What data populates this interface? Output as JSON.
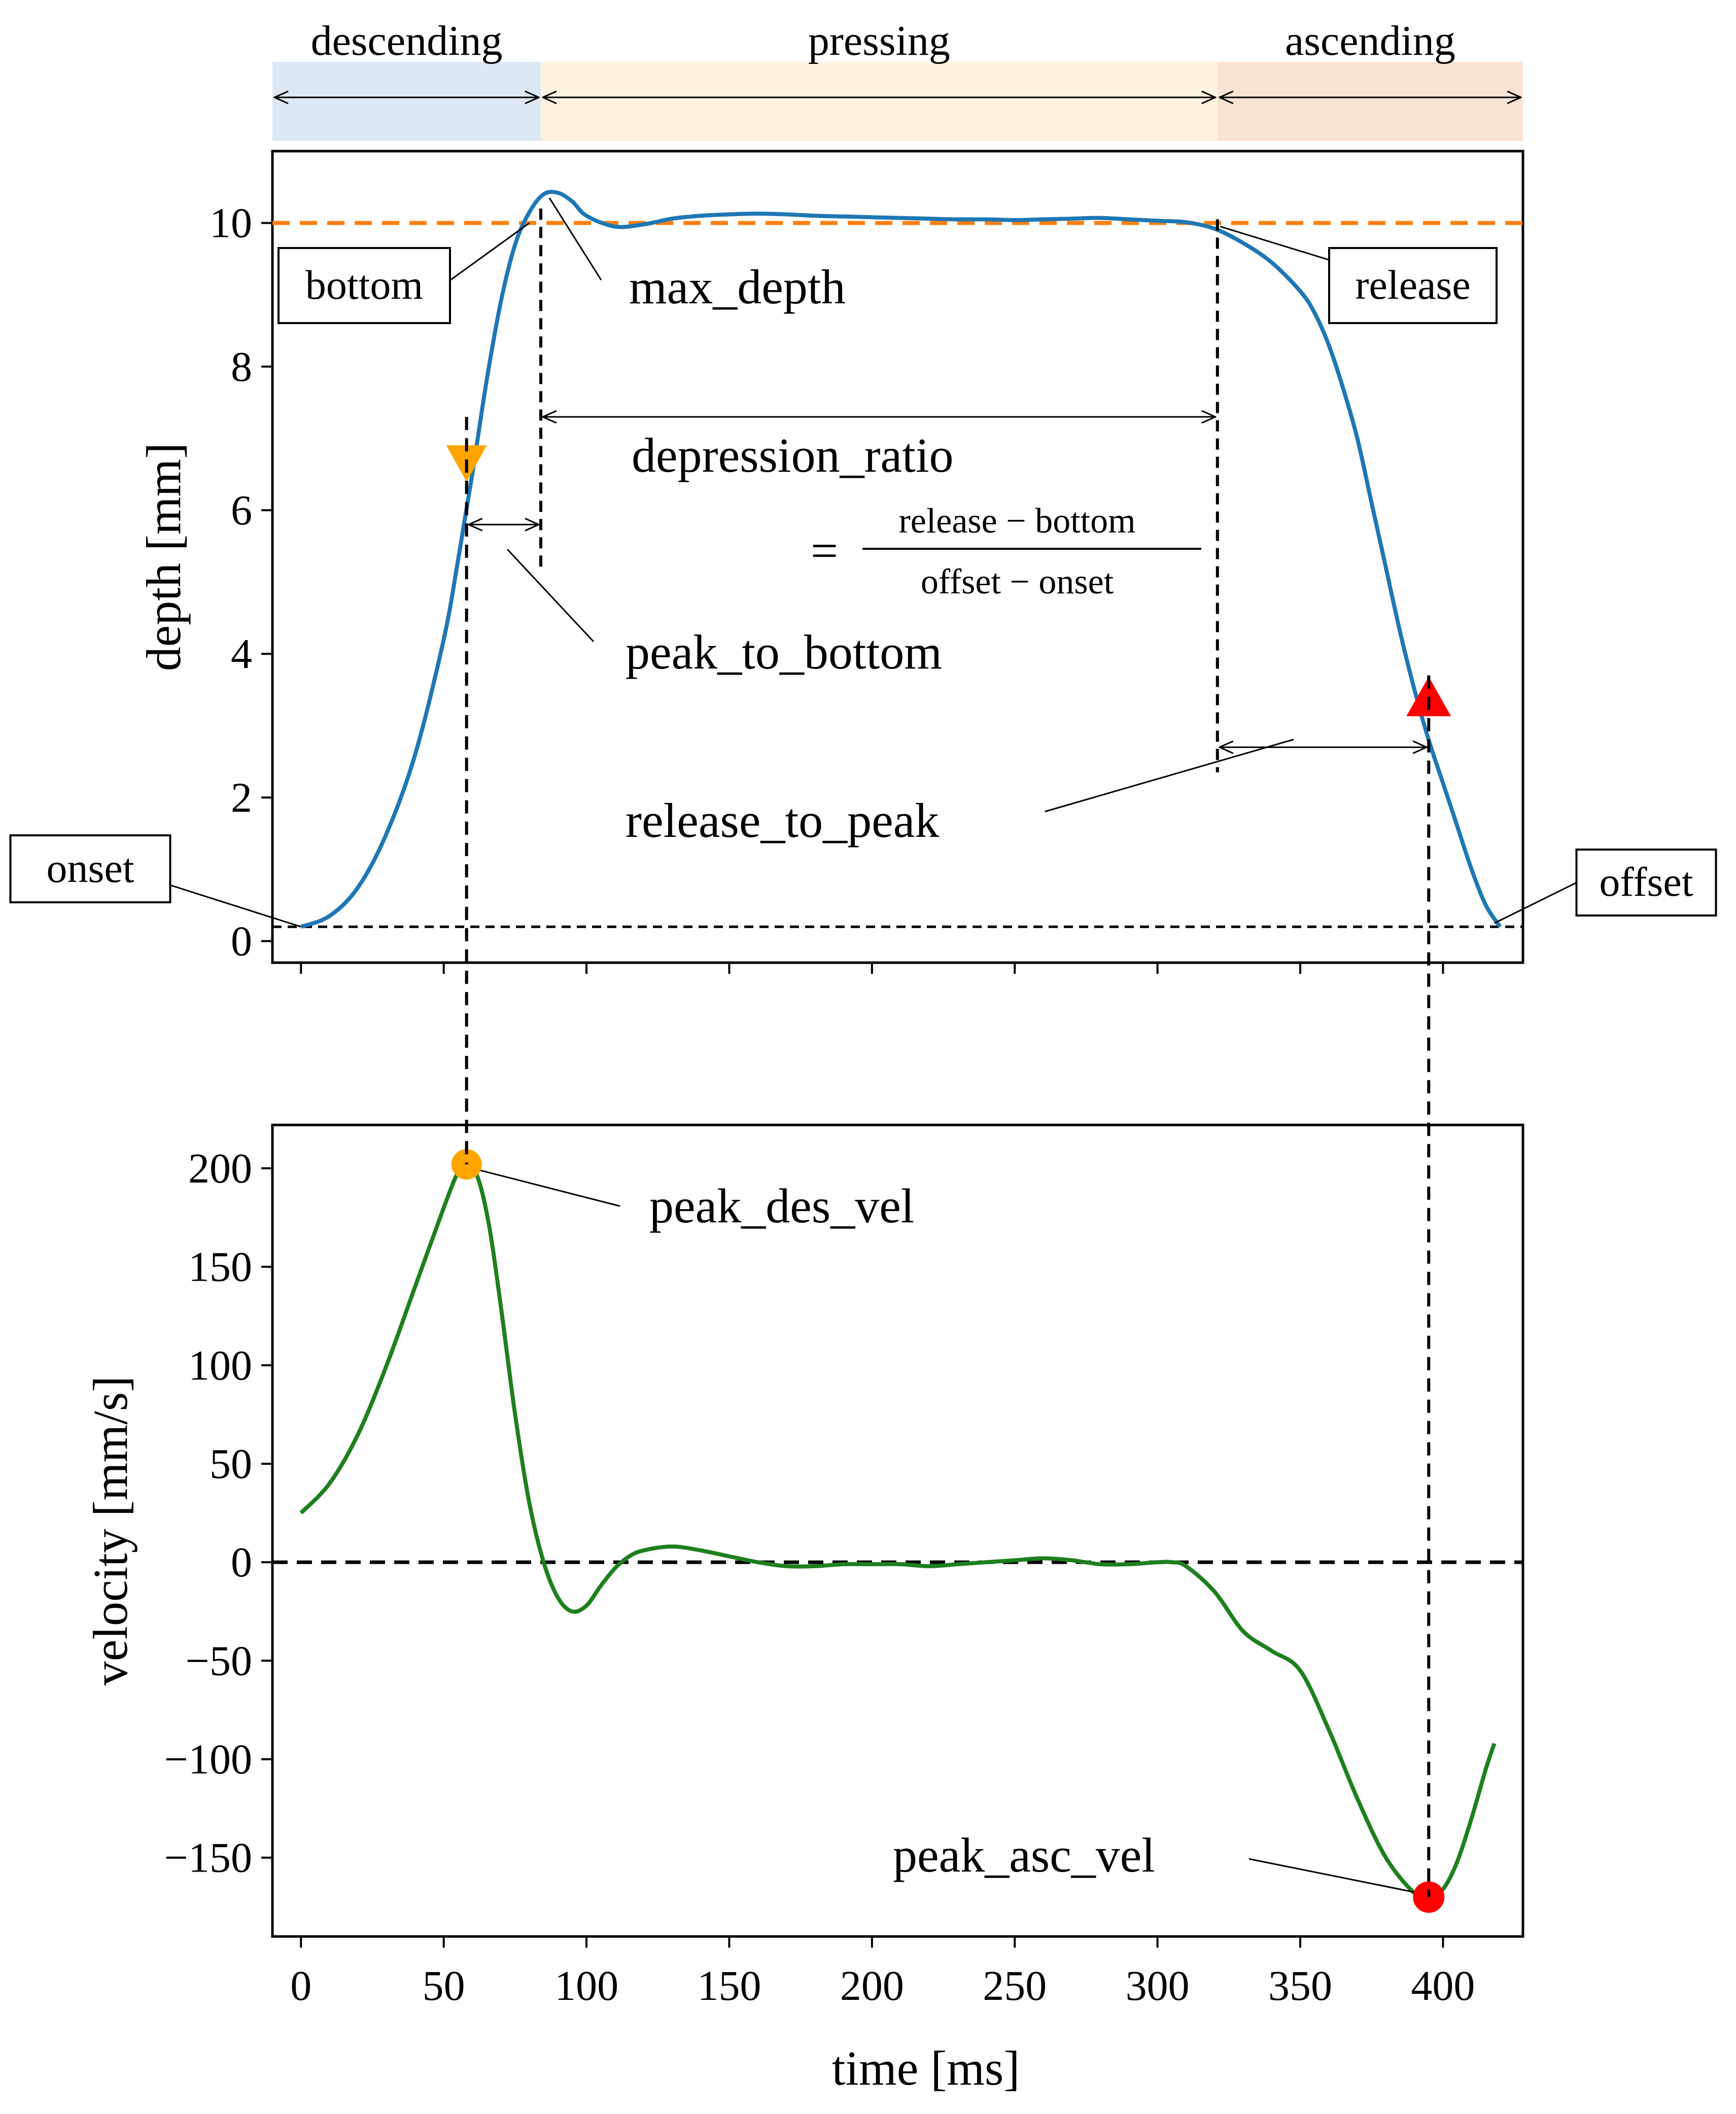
{
  "chart_data": [
    {
      "type": "line",
      "ylabel": "depth [mm]",
      "ylim": [
        -0.3,
        11.0
      ],
      "yticks": [
        0,
        2,
        4,
        6,
        8,
        10
      ],
      "x": [
        0,
        10,
        20,
        30,
        40,
        50,
        55,
        60,
        65,
        70,
        75,
        80,
        85,
        90,
        95,
        100,
        110,
        120,
        130,
        140,
        150,
        160,
        170,
        180,
        190,
        200,
        210,
        220,
        230,
        240,
        250,
        260,
        270,
        280,
        290,
        300,
        310,
        320,
        330,
        340,
        350,
        355,
        360,
        365,
        370,
        375,
        380,
        385,
        390,
        395,
        400,
        405,
        410,
        415,
        420
      ],
      "series": [
        {
          "name": "depth",
          "color": "#1f77b4",
          "values": [
            0.2,
            0.35,
            0.75,
            1.5,
            2.6,
            4.2,
            5.3,
            6.5,
            7.8,
            8.9,
            9.7,
            10.15,
            10.4,
            10.42,
            10.3,
            10.1,
            9.95,
            9.98,
            10.06,
            10.1,
            10.12,
            10.13,
            10.12,
            10.1,
            10.09,
            10.08,
            10.07,
            10.06,
            10.05,
            10.05,
            10.04,
            10.05,
            10.06,
            10.07,
            10.05,
            10.03,
            10.01,
            9.92,
            9.72,
            9.45,
            9.05,
            8.75,
            8.3,
            7.7,
            7.0,
            6.1,
            5.2,
            4.3,
            3.5,
            2.8,
            2.2,
            1.6,
            1.0,
            0.5,
            0.2
          ]
        }
      ],
      "reference_lines": [
        {
          "orientation": "horizontal",
          "y": 10.0,
          "style": "dashed",
          "color": "#ff7f0e"
        },
        {
          "orientation": "horizontal",
          "y": 0.2,
          "style": "dashed",
          "color": "#000000"
        }
      ],
      "markers": [
        {
          "label": "peak descending",
          "x": 58,
          "y": 6.65,
          "shape": "triangle-down",
          "color": "#ffa500"
        },
        {
          "label": "peak ascending",
          "x": 395,
          "y": 3.4,
          "shape": "triangle-up",
          "color": "#ff0000"
        }
      ],
      "phases": [
        {
          "label": "descending",
          "x_start": -10,
          "x_end": 84,
          "color": "#dce9f5"
        },
        {
          "label": "pressing",
          "x_start": 84,
          "x_end": 321,
          "color": "#fdf3de"
        },
        {
          "label": "ascending",
          "x_start": 321,
          "x_end": 428,
          "color": "#fae3d3"
        }
      ],
      "annotations": [
        "bottom",
        "max_depth",
        "release",
        "depression_ratio",
        "peak_to_bottom",
        "release_to_peak",
        "onset",
        "offset"
      ],
      "formula": {
        "prefix": "=",
        "numerator": "release − bottom",
        "denominator": "offset − onset"
      }
    },
    {
      "type": "line",
      "xlabel": "time [ms]",
      "ylabel": "velocity [mm/s]",
      "xlim": [
        -10,
        428
      ],
      "ylim": [
        -190,
        222
      ],
      "xticks": [
        0,
        50,
        100,
        150,
        200,
        250,
        300,
        350,
        400
      ],
      "yticks": [
        200,
        150,
        100,
        50,
        0,
        -50,
        -100,
        -150
      ],
      "ytick_labels": [
        "200",
        "150",
        "100",
        "50",
        "0",
        "−50",
        "−100",
        "−150"
      ],
      "x": [
        0,
        10,
        20,
        30,
        40,
        50,
        55,
        58,
        62,
        66,
        70,
        75,
        80,
        85,
        90,
        95,
        100,
        105,
        110,
        115,
        120,
        130,
        140,
        150,
        160,
        170,
        180,
        190,
        200,
        210,
        220,
        230,
        240,
        250,
        260,
        270,
        280,
        290,
        300,
        305,
        310,
        320,
        330,
        340,
        350,
        360,
        370,
        380,
        390,
        395,
        400,
        405,
        410,
        415,
        418
      ],
      "series": [
        {
          "name": "velocity",
          "color": "#1e7f1e",
          "values": [
            25,
            40,
            65,
            100,
            140,
            180,
            198,
            202,
            195,
            170,
            130,
            75,
            30,
            0,
            -18,
            -25,
            -22,
            -12,
            -3,
            3,
            6,
            8,
            6,
            3,
            0,
            -2,
            -2,
            -1,
            -1,
            -1,
            -2,
            -1,
            0,
            1,
            2,
            1,
            -1,
            -1,
            0,
            0,
            -2,
            -15,
            -35,
            -45,
            -55,
            -85,
            -120,
            -150,
            -168,
            -170,
            -166,
            -152,
            -130,
            -105,
            -92
          ]
        }
      ],
      "reference_lines": [
        {
          "orientation": "horizontal",
          "y": 0,
          "style": "dashed",
          "color": "#000000"
        }
      ],
      "markers": [
        {
          "label": "peak_des_vel",
          "x": 58,
          "y": 202,
          "shape": "circle",
          "color": "#ffa500"
        },
        {
          "label": "peak_asc_vel",
          "x": 395,
          "y": -170,
          "shape": "circle",
          "color": "#ff0000"
        }
      ],
      "annotations": [
        "peak_des_vel",
        "peak_asc_vel"
      ]
    }
  ]
}
